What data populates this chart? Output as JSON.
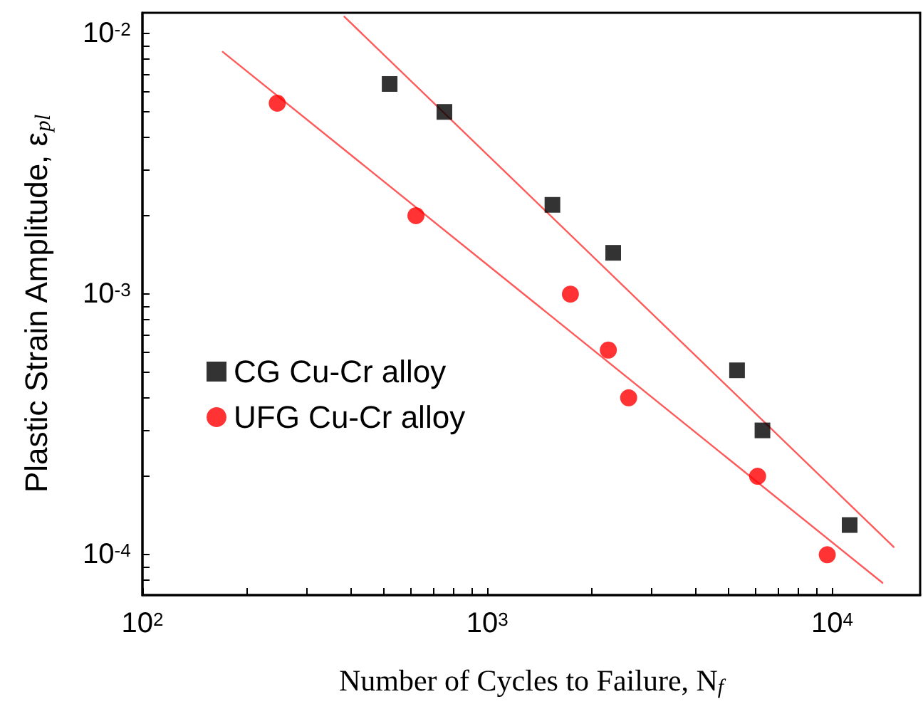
{
  "chart_data": {
    "type": "scatter",
    "xlabel": "Number of Cycles to Failure, N$_{f}$",
    "ylabel": "Plastic Strain Amplitude, ε$_{pl}$",
    "log": "xy",
    "legend": "left",
    "grid": false,
    "xlim": [
      100,
      18000
    ],
    "ylim": [
      7e-05,
      0.012
    ],
    "xticks": [
      {
        "value": 100,
        "label": "10$^{2}$"
      },
      {
        "value": 200,
        "label": null
      },
      {
        "value": 300,
        "label": null
      },
      {
        "value": 400,
        "label": null
      },
      {
        "value": 500,
        "label": null
      },
      {
        "value": 600,
        "label": null
      },
      {
        "value": 700,
        "label": null
      },
      {
        "value": 800,
        "label": null
      },
      {
        "value": 900,
        "label": null
      },
      {
        "value": 1000,
        "label": "10$^{3}$"
      },
      {
        "value": 2000,
        "label": null
      },
      {
        "value": 3000,
        "label": null
      },
      {
        "value": 4000,
        "label": null
      },
      {
        "value": 5000,
        "label": null
      },
      {
        "value": 6000,
        "label": null
      },
      {
        "value": 7000,
        "label": null
      },
      {
        "value": 8000,
        "label": null
      },
      {
        "value": 9000,
        "label": null
      },
      {
        "value": 10000,
        "label": "10$^{4}$"
      }
    ],
    "yticks": [
      {
        "value": 8e-05,
        "label": null
      },
      {
        "value": 9e-05,
        "label": null
      },
      {
        "value": 0.0001,
        "label": "10$^{-4}$"
      },
      {
        "value": 0.0002,
        "label": null
      },
      {
        "value": 0.0003,
        "label": null
      },
      {
        "value": 0.0004,
        "label": null
      },
      {
        "value": 0.0005,
        "label": null
      },
      {
        "value": 0.0006,
        "label": null
      },
      {
        "value": 0.0007,
        "label": null
      },
      {
        "value": 0.0008,
        "label": null
      },
      {
        "value": 0.0009,
        "label": null
      },
      {
        "value": 0.001,
        "label": "10$^{-3}$"
      },
      {
        "value": 0.002,
        "label": null
      },
      {
        "value": 0.003,
        "label": null
      },
      {
        "value": 0.004,
        "label": null
      },
      {
        "value": 0.005,
        "label": null
      },
      {
        "value": 0.006,
        "label": null
      },
      {
        "value": 0.007,
        "label": null
      },
      {
        "value": 0.008,
        "label": null
      },
      {
        "value": 0.009,
        "label": null
      },
      {
        "value": 0.01,
        "label": "10$^{-2}$"
      }
    ],
    "series": [
      {
        "name": "CG Cu-Cr alloy",
        "marker": "square",
        "color": "#000000",
        "x": [
          521,
          751,
          1545,
          2318,
          5300,
          6280,
          11240
        ],
        "values": [
          0.0064,
          0.005,
          0.0022,
          0.00144,
          0.00051,
          0.0003,
          0.00013
        ]
      },
      {
        "name": "UFG Cu-Cr alloy",
        "marker": "circle",
        "color": "#ff0000",
        "x": [
          246,
          621,
          1742,
          2244,
          2570,
          6080,
          9680
        ],
        "values": [
          0.0054,
          0.002,
          0.001,
          0.00061,
          0.0004,
          0.0002,
          0.0001
        ]
      },
      {
        "type": "line",
        "marker": "none",
        "color": "#ff5a5a",
        "x": [
          385,
          15100
        ],
        "values": [
          0.0116,
          0.000107
        ]
      },
      {
        "type": "line",
        "marker": "none",
        "color": "#ff5a5a",
        "x": [
          171,
          14000
        ],
        "values": [
          0.0085,
          7.8e-05
        ]
      }
    ]
  }
}
